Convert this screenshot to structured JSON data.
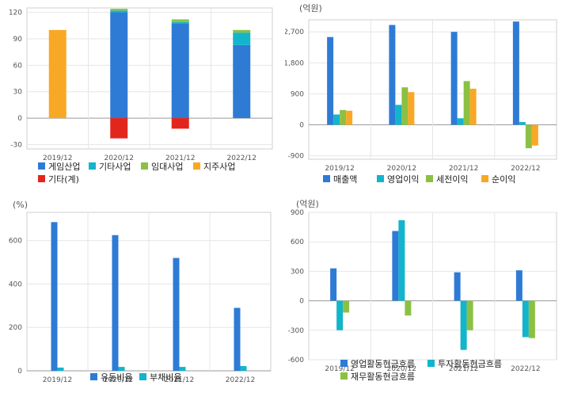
{
  "chart_data": [
    {
      "type": "bar",
      "stacked": true,
      "unit": "",
      "categories": [
        "2019/12",
        "2020/12",
        "2021/12",
        "2022/12"
      ],
      "ylim": [
        -35,
        125
      ],
      "yticks": [
        -30,
        0,
        30,
        60,
        90,
        120
      ],
      "grid": true,
      "legend_position": "bottom",
      "series": [
        {
          "name": "게임산업",
          "color": "#2e7bd6",
          "values": [
            0,
            120,
            107,
            83
          ]
        },
        {
          "name": "기타사업",
          "color": "#12b5cb",
          "values": [
            0,
            2,
            2,
            14
          ]
        },
        {
          "name": "임대사업",
          "color": "#8cc043",
          "values": [
            0,
            2,
            3,
            3
          ]
        },
        {
          "name": "지주사업",
          "color": "#f9a825",
          "values": [
            100,
            0,
            0,
            0
          ]
        },
        {
          "name": "기타(계)",
          "color": "#e3261d",
          "values": [
            0,
            -23,
            -12,
            0
          ]
        }
      ]
    },
    {
      "type": "bar",
      "stacked": false,
      "unit": "(억원)",
      "categories": [
        "2019/12",
        "2020/12",
        "2021/12",
        "2022/12"
      ],
      "ylim": [
        -1000,
        3050
      ],
      "yticks": [
        -900,
        0,
        900,
        1800,
        2700
      ],
      "grid": true,
      "legend_position": "bottom",
      "series": [
        {
          "name": "매출액",
          "color": "#2e7bd6",
          "values": [
            2550,
            2900,
            2700,
            3000
          ]
        },
        {
          "name": "영업이익",
          "color": "#12b5cb",
          "values": [
            300,
            580,
            190,
            80
          ]
        },
        {
          "name": "세전이익",
          "color": "#8cc043",
          "values": [
            430,
            1090,
            1270,
            -680
          ]
        },
        {
          "name": "순이익",
          "color": "#f9a825",
          "values": [
            410,
            950,
            1050,
            -600
          ]
        }
      ]
    },
    {
      "type": "bar",
      "stacked": false,
      "unit": "(%)",
      "categories": [
        "2019/12",
        "2020/12",
        "2021/12",
        "2022/12"
      ],
      "ylim": [
        0,
        730
      ],
      "yticks": [
        0,
        200,
        400,
        600
      ],
      "grid": true,
      "legend_position": "bottom",
      "series": [
        {
          "name": "유동비율",
          "color": "#2e7bd6",
          "values": [
            685,
            625,
            520,
            290
          ]
        },
        {
          "name": "부채비율",
          "color": "#12b5cb",
          "values": [
            15,
            18,
            18,
            22
          ]
        }
      ]
    },
    {
      "type": "bar",
      "stacked": false,
      "unit": "(억원)",
      "categories": [
        "2019/12",
        "2020/12",
        "2021/12",
        "2022/12"
      ],
      "ylim": [
        -600,
        900
      ],
      "yticks": [
        -600,
        -300,
        0,
        300,
        600,
        900
      ],
      "grid": true,
      "legend_position": "bottom",
      "series": [
        {
          "name": "영업활동현금흐름",
          "color": "#2e7bd6",
          "values": [
            330,
            710,
            290,
            310
          ]
        },
        {
          "name": "투자활동현금흐름",
          "color": "#12b5cb",
          "values": [
            -300,
            820,
            -500,
            -370
          ]
        },
        {
          "name": "재무활동현금흐름",
          "color": "#8cc043",
          "values": [
            -120,
            -150,
            -300,
            -380
          ]
        }
      ]
    }
  ]
}
